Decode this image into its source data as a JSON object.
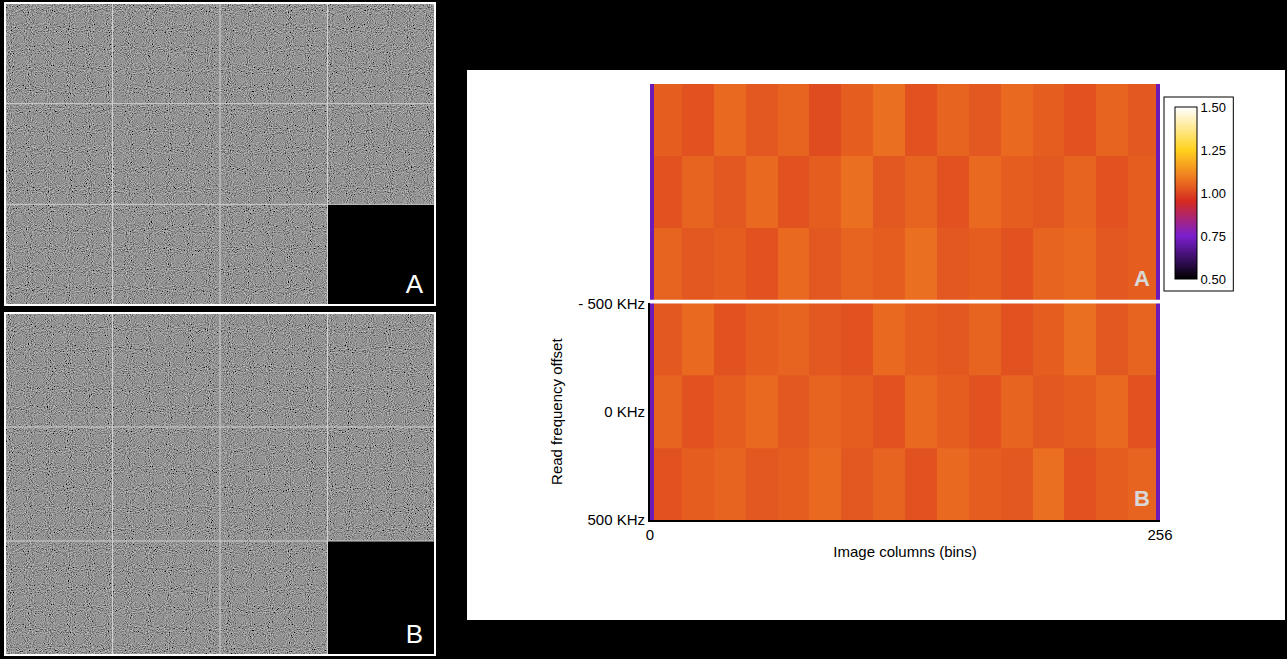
{
  "image_panels": [
    {
      "label": "A",
      "rows": 3,
      "columns": 4,
      "images": 11
    },
    {
      "label": "B",
      "rows": 3,
      "columns": 4,
      "images": 11
    }
  ],
  "chart_data": {
    "type": "heatmap",
    "x_label": "Image columns (bins)",
    "y_label": "Read frequency offset",
    "xlim": [
      0,
      256
    ],
    "xticks": [
      0,
      256
    ],
    "ylim": [
      500,
      -500
    ],
    "yticks": [
      {
        "value": -500,
        "label": "- 500 KHz"
      },
      {
        "value": 0,
        "label": "0 KHz"
      },
      {
        "value": 500,
        "label": "500 KHz"
      }
    ],
    "x": [
      0,
      2,
      16,
      32,
      48,
      64,
      80,
      96,
      112,
      128,
      144,
      160,
      176,
      192,
      208,
      224,
      240,
      254,
      256
    ],
    "y": [
      -500,
      -167,
      167,
      500
    ],
    "panels": [
      {
        "label": "A",
        "tick_labels": false,
        "z": [
          [
            0.72,
            1.04,
            1.02,
            1.06,
            1.03,
            1.05,
            1.01,
            1.04,
            1.07,
            1.02,
            1.05,
            1.03,
            1.06,
            1.04,
            1.02,
            1.05,
            1.03,
            0.72
          ],
          [
            0.72,
            1.02,
            1.05,
            1.03,
            1.06,
            1.02,
            1.04,
            1.07,
            1.03,
            1.05,
            1.02,
            1.06,
            1.04,
            1.03,
            1.05,
            1.02,
            1.04,
            0.72
          ],
          [
            0.72,
            1.05,
            1.03,
            1.04,
            1.02,
            1.06,
            1.03,
            1.05,
            1.04,
            1.07,
            1.03,
            1.04,
            1.02,
            1.05,
            1.06,
            1.03,
            1.04,
            0.72
          ]
        ]
      },
      {
        "label": "B",
        "z": [
          [
            0.72,
            1.03,
            1.06,
            1.02,
            1.04,
            1.05,
            1.03,
            1.02,
            1.06,
            1.04,
            1.03,
            1.05,
            1.02,
            1.04,
            1.07,
            1.03,
            1.05,
            0.72
          ],
          [
            0.72,
            1.05,
            1.02,
            1.04,
            1.06,
            1.03,
            1.05,
            1.04,
            1.02,
            1.06,
            1.04,
            1.02,
            1.05,
            1.03,
            1.04,
            1.06,
            1.02,
            0.72
          ],
          [
            0.72,
            1.02,
            1.04,
            1.05,
            1.03,
            1.04,
            1.06,
            1.03,
            1.05,
            1.02,
            1.06,
            1.04,
            1.03,
            1.07,
            1.02,
            1.04,
            1.05,
            0.72
          ]
        ]
      }
    ],
    "colorbar": {
      "range": [
        0.5,
        1.5
      ],
      "ticks": [
        {
          "value": 0.5,
          "label": "0.50"
        },
        {
          "value": 0.75,
          "label": "0.75"
        },
        {
          "value": 1.0,
          "label": "1.00"
        },
        {
          "value": 1.25,
          "label": "1.25"
        },
        {
          "value": 1.5,
          "label": "1.50"
        }
      ]
    }
  }
}
